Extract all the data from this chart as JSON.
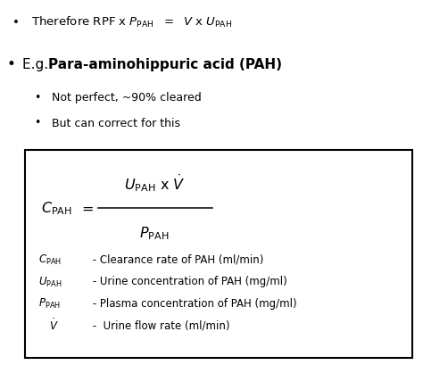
{
  "bg_color": "#ffffff",
  "text_color": "#000000",
  "fig_width": 4.74,
  "fig_height": 4.09,
  "dpi": 100,
  "sub_bullet1": "Not perfect, ~90% cleared",
  "sub_bullet2": "But can correct for this",
  "def1_rhs": " - Clearance rate of PAH (ml/min)",
  "def2_rhs": " - Urine concentration of PAH (mg/ml)",
  "def3_rhs": " - Plasma concentration of PAH (mg/ml)",
  "def4_rhs": " -  Urine flow rate (ml/min)"
}
